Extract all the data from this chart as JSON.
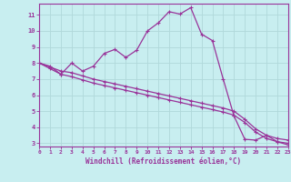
{
  "xlabel": "Windchill (Refroidissement éolien,°C)",
  "xlim": [
    0,
    23
  ],
  "ylim": [
    2.8,
    11.7
  ],
  "yticks": [
    3,
    4,
    5,
    6,
    7,
    8,
    9,
    10,
    11
  ],
  "xticks": [
    0,
    1,
    2,
    3,
    4,
    5,
    6,
    7,
    8,
    9,
    10,
    11,
    12,
    13,
    14,
    15,
    16,
    17,
    18,
    19,
    20,
    21,
    22,
    23
  ],
  "background_color": "#c8eef0",
  "grid_color": "#b0d8da",
  "line_color": "#993399",
  "line1_x": [
    0,
    1,
    2,
    3,
    4,
    5,
    6,
    7,
    8,
    9,
    10,
    11,
    12,
    13,
    14,
    15,
    16,
    17,
    18,
    19,
    20,
    21,
    22,
    23
  ],
  "line1_y": [
    8.0,
    7.8,
    7.3,
    8.0,
    7.5,
    7.8,
    8.6,
    8.85,
    8.35,
    8.8,
    10.0,
    10.5,
    11.2,
    11.05,
    11.45,
    9.8,
    9.4,
    7.0,
    4.7,
    3.25,
    3.2,
    3.5,
    3.1,
    2.9
  ],
  "line2_x": [
    0,
    1,
    2,
    3,
    4,
    5,
    6,
    7,
    8,
    9,
    10,
    11,
    12,
    13,
    14,
    15,
    16,
    17,
    18,
    19,
    20,
    21,
    22,
    23
  ],
  "line2_y": [
    8.0,
    7.75,
    7.5,
    7.4,
    7.2,
    7.0,
    6.85,
    6.7,
    6.55,
    6.4,
    6.25,
    6.1,
    5.95,
    5.8,
    5.65,
    5.5,
    5.35,
    5.2,
    5.0,
    4.5,
    3.9,
    3.5,
    3.3,
    3.2
  ],
  "line3_x": [
    0,
    1,
    2,
    3,
    4,
    5,
    6,
    7,
    8,
    9,
    10,
    11,
    12,
    13,
    14,
    15,
    16,
    17,
    18,
    19,
    20,
    21,
    22,
    23
  ],
  "line3_y": [
    8.0,
    7.65,
    7.3,
    7.15,
    6.95,
    6.75,
    6.6,
    6.45,
    6.3,
    6.15,
    6.0,
    5.85,
    5.7,
    5.55,
    5.4,
    5.25,
    5.1,
    4.95,
    4.75,
    4.3,
    3.7,
    3.3,
    3.1,
    3.0
  ]
}
